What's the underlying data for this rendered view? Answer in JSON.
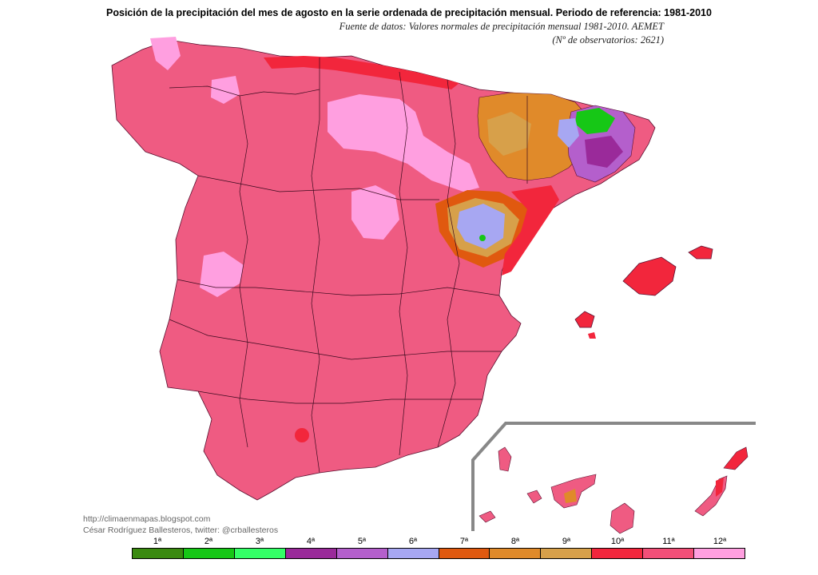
{
  "title": "Posición de la precipitación del mes de agosto en la serie ordenada de precipitación mensual. Periodo de referencia: 1981-2010",
  "source_line1": "Fuente de datos: Valores normales de precipitación mensual 1981-2010. AEMET",
  "source_line2": "(Nº de observatorios: 2621)",
  "credit_line1": "http://climaenmapas.blogspot.com",
  "credit_line2": "César Rodríguez Ballesteros, twitter: @crballesteros",
  "legend": [
    {
      "label": "1ª",
      "color": "#3a8a10"
    },
    {
      "label": "2ª",
      "color": "#16c716"
    },
    {
      "label": "3ª",
      "color": "#33ff66"
    },
    {
      "label": "4ª",
      "color": "#9a2a9a"
    },
    {
      "label": "5ª",
      "color": "#b45fcc"
    },
    {
      "label": "6ª",
      "color": "#a7a7f2"
    },
    {
      "label": "7ª",
      "color": "#e0590f"
    },
    {
      "label": "8ª",
      "color": "#e08a2a"
    },
    {
      "label": "9ª",
      "color": "#d7a04a"
    },
    {
      "label": "10ª",
      "color": "#f2263c"
    },
    {
      "label": "11ª",
      "color": "#f24f78"
    },
    {
      "label": "12ª",
      "color": "#ff9fe0"
    }
  ]
}
